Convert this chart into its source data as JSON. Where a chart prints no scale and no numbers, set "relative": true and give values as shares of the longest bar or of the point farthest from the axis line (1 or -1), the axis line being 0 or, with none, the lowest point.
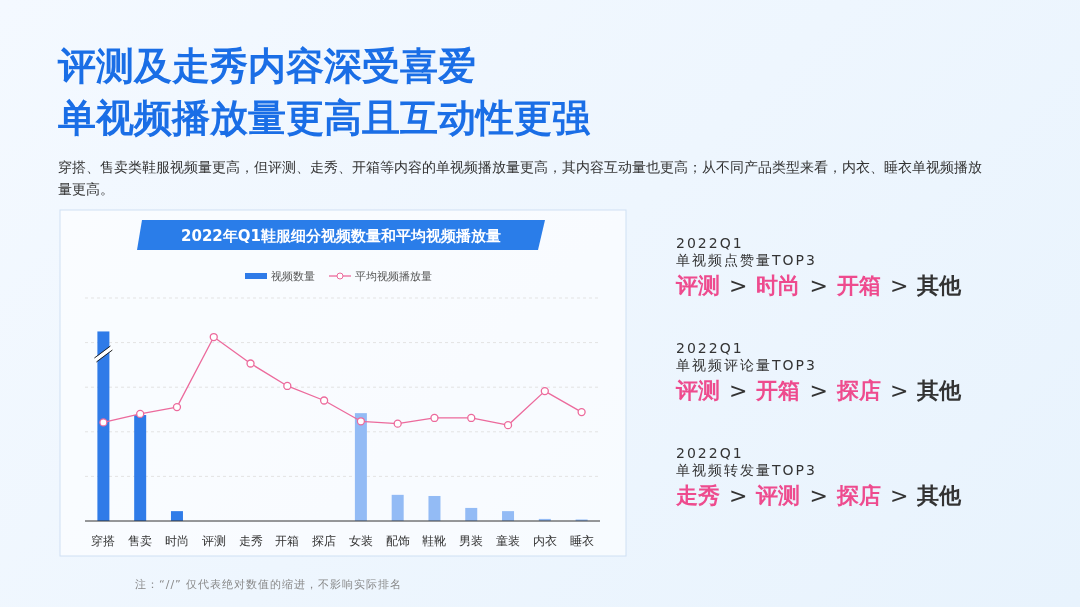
{
  "chart_data": [
    {
      "type": "other",
      "title": "评测及走秀内容深受喜爱",
      "subtitle": "单视频播放量更高且互动性更强",
      "annotations": [
        "穿搭、售卖类鞋服视频量更高，但评测、走秀、开箱等内容的单视频播放量更高，其内容互动量也更高；从不同产品类型来看，内衣、睡衣单视频播放量更高。"
      ]
    },
    {
      "type": "bar",
      "title": "2022年Q1鞋服细分视频数量和平均视频播放量",
      "categories": [
        "穿搭",
        "售卖",
        "时尚",
        "评测",
        "走秀",
        "开箱",
        "探店",
        "女装",
        "配饰",
        "鞋靴",
        "男装",
        "童装",
        "内衣",
        "睡衣"
      ],
      "relative": true,
      "legend": "top",
      "grid": true,
      "series": [
        {
          "name": "视频数量",
          "type": "bar",
          "colors": [
            "#2f7be8",
            "#2f7be8",
            "#2f7be8",
            "#2f7be8",
            "#2f7be8",
            "#2f7be8",
            "#2f7be8",
            "#93bbf5",
            "#93bbf5",
            "#93bbf5",
            "#93bbf5",
            "#93bbf5",
            "#93bbf5",
            "#93bbf5"
          ],
          "values": [
            1,
            0.559,
            0.052,
            0,
            0,
            0,
            0,
            0.569,
            0.138,
            0.132,
            0.069,
            0.052,
            0.011,
            0.008
          ]
        },
        {
          "name": "平均视频播放量",
          "type": "line",
          "axis": "y2",
          "color": "#ec6a9c",
          "marker": "circle",
          "values": [
            0.536,
            0.582,
            0.619,
            1,
            0.856,
            0.734,
            0.655,
            0.542,
            0.529,
            0.56,
            0.56,
            0.521,
            0.706,
            0.592
          ]
        }
      ],
      "annotations": [
        "注：“//” 仅代表绝对数值的缩进，不影响实际排名"
      ]
    },
    {
      "type": "other",
      "title": "2022Q1",
      "subtitle": "单视频点赞量TOP3",
      "annotations": [
        "评测",
        ">",
        "时尚",
        ">",
        "开箱",
        ">",
        "其他"
      ]
    },
    {
      "type": "other",
      "title": "2022Q1",
      "subtitle": "单视频评论量TOP3",
      "annotations": [
        "评测",
        ">",
        "开箱",
        ">",
        "探店",
        ">",
        "其他"
      ]
    },
    {
      "type": "other",
      "title": "2022Q1",
      "subtitle": "单视频转发量TOP3",
      "annotations": [
        "走秀",
        ">",
        "评测",
        ">",
        "探店",
        ">",
        "其他"
      ]
    }
  ]
}
